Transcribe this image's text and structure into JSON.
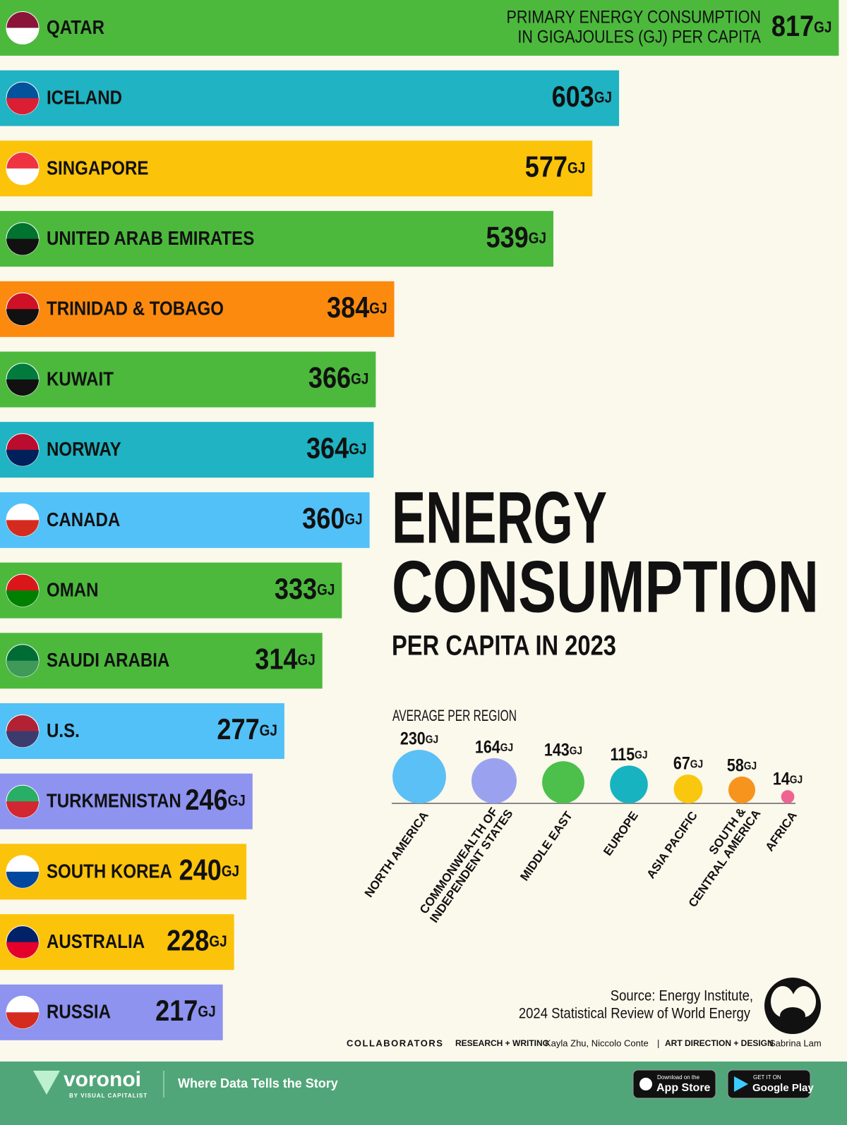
{
  "chart_data": [
    {
      "type": "bar",
      "orientation": "horizontal",
      "annotation": [
        "PRIMARY ENERGY CONSUMPTION",
        "IN GIGAJOULES (GJ) PER CAPITA"
      ],
      "unit": "GJ",
      "categories": [
        "QATAR",
        "ICELAND",
        "SINGAPORE",
        "UNITED ARAB EMIRATES",
        "TRINIDAD & TOBAGO",
        "KUWAIT",
        "NORWAY",
        "CANADA",
        "OMAN",
        "SAUDI ARABIA",
        "U.S.",
        "TURKMENISTAN",
        "SOUTH KOREA",
        "AUSTRALIA",
        "RUSSIA"
      ],
      "values": [
        817,
        603,
        577,
        539,
        384,
        366,
        364,
        360,
        333,
        314,
        277,
        246,
        240,
        228,
        217
      ],
      "colors": [
        "#4cb93d",
        "#1fb3c3",
        "#fcc30b",
        "#4cb93d",
        "#fb8a0f",
        "#4cb93d",
        "#1fb3c3",
        "#52c1f7",
        "#4cb93d",
        "#4cb93d",
        "#52c1f7",
        "#8d93ef",
        "#fcc30b",
        "#fcc30b",
        "#8d93ef"
      ],
      "xlim": [
        0,
        825
      ]
    },
    {
      "type": "bubble",
      "title": "AVERAGE PER REGION",
      "unit": "GJ",
      "categories": [
        "NORTH AMERICA",
        "COMMONWEALTH OF\nINDEPENDENT STATES",
        "MIDDLE EAST",
        "EUROPE",
        "ASIA PACIFIC",
        "SOUTH &\nCENTRAL AMERICA",
        "AFRICA"
      ],
      "values": [
        230,
        164,
        143,
        115,
        67,
        58,
        14
      ],
      "colors": [
        "#5bc0f5",
        "#9aa2f0",
        "#4cc04a",
        "#17b3c1",
        "#f9c80e",
        "#f7941d",
        "#f06292"
      ]
    }
  ],
  "title": [
    "ENERGY",
    "CONSUMPTION"
  ],
  "subtitle": "PER CAPITA IN 2023",
  "source": [
    "Source: Energy Institute,",
    "2024 Statistical Review of World Energy"
  ],
  "credits": {
    "label": "COLLABORATORS",
    "research_label": "RESEARCH + WRITING",
    "research": "Kayla Zhu, Niccolo Conte",
    "separator": "|",
    "design_label": "ART DIRECTION + DESIGN",
    "design": "Sabrina Lam"
  },
  "footer": {
    "brand": "voronoi",
    "brand_sub": "BY VISUAL CAPITALIST",
    "tagline": "Where Data Tells the Story",
    "appstore_small": "Download on the",
    "appstore": "App Store",
    "googleplay_small": "GET IT ON",
    "googleplay": "Google Play"
  }
}
